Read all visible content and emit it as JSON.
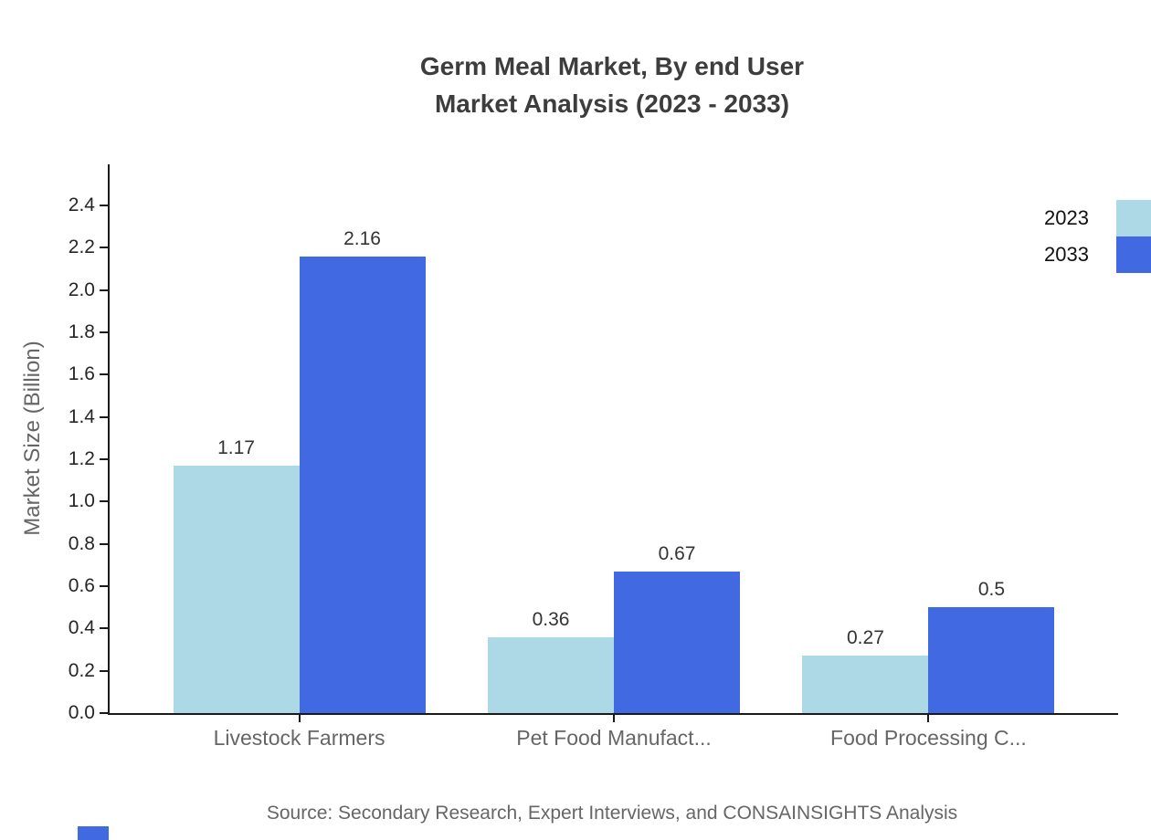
{
  "title": {
    "line1": "Germ Meal Market, By end User",
    "line2": "Market Analysis (2023 - 2033)"
  },
  "source": "Source: Secondary Research, Expert Interviews, and CONSAINSIGHTS Analysis",
  "colors": {
    "series_2023": "#ADD8E6",
    "series_2033": "#4169E1",
    "axis": "#1a1a1a",
    "title_text": "#3d3d3d",
    "muted_text": "#666666",
    "value_label_text": "#333333",
    "brand_mark": "#4169E1"
  },
  "chart_data": {
    "type": "bar",
    "title": "Germ Meal Market, By end User Market Analysis (2023 - 2033)",
    "categories": [
      "Livestock Farmers",
      "Pet Food Manufact...",
      "Food Processing C..."
    ],
    "series": [
      {
        "name": "2023",
        "color": "#ADD8E6",
        "values": [
          1.17,
          0.36,
          0.27
        ],
        "labels": [
          "1.17",
          "0.36",
          "0.27"
        ]
      },
      {
        "name": "2033",
        "color": "#4169E1",
        "values": [
          2.16,
          0.67,
          0.5
        ],
        "labels": [
          "2.16",
          "0.67",
          "0.5"
        ]
      }
    ],
    "xlabel": "",
    "ylabel": "Market Size (Billion)",
    "ylim": [
      0,
      2.4
    ],
    "ytick_step": 0.2,
    "ytick_labels": [
      "0.0",
      "0.2",
      "0.4",
      "0.6",
      "0.8",
      "1.0",
      "1.2",
      "1.4",
      "1.6",
      "1.8",
      "2.0",
      "2.2",
      "2.4"
    ],
    "grid": false,
    "legend_position": "top-right"
  }
}
